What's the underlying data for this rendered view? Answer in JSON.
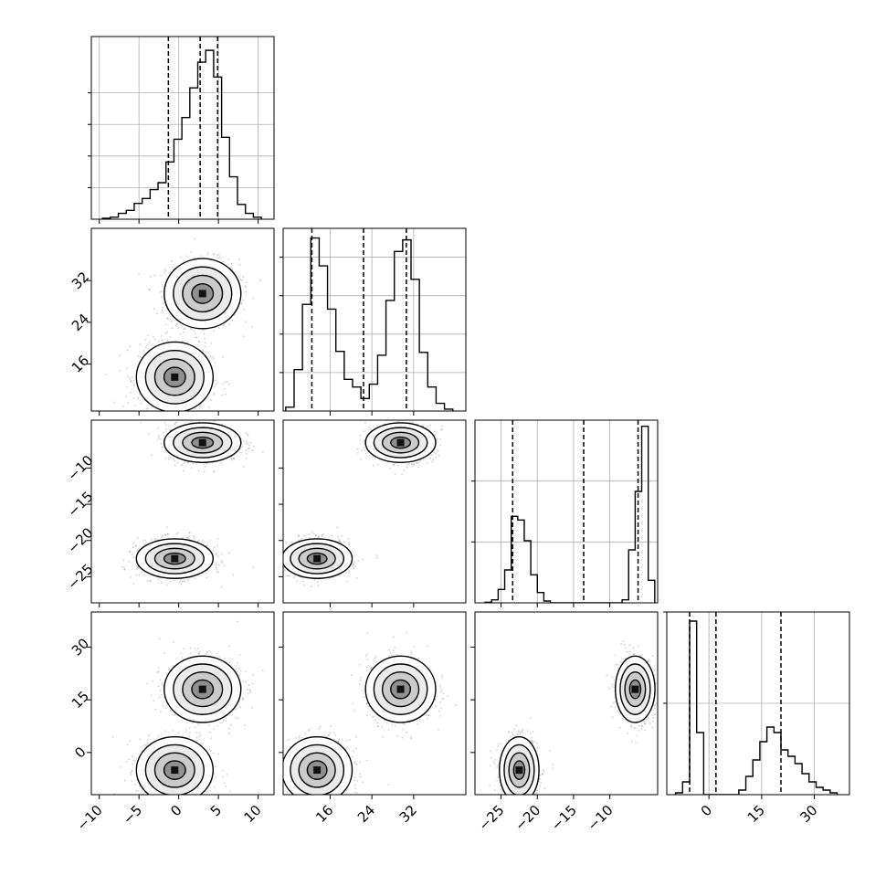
{
  "chart_data": {
    "type": "corner",
    "grid": true,
    "parameters": [
      {
        "index": 0,
        "range": [
          -11,
          12
        ],
        "ticks": [
          -10,
          -5,
          0,
          5,
          10
        ],
        "tick_labels": [
          "−10",
          "−5",
          "0",
          "5",
          "10"
        ],
        "quantiles": [
          -1.3,
          2.7,
          4.9
        ],
        "histogram": {
          "bins": [
            -9.6,
            -8.6,
            -7.6,
            -6.6,
            -5.6,
            -4.6,
            -3.6,
            -2.6,
            -1.6,
            -0.6,
            0.4,
            1.4,
            2.4,
            3.4,
            4.4,
            5.4,
            6.4,
            7.4,
            8.4,
            9.4,
            10.4
          ],
          "counts": [
            1,
            2,
            6,
            9,
            16,
            21,
            30,
            37,
            58,
            81,
            103,
            133,
            159,
            171,
            144,
            83,
            43,
            15,
            6,
            2
          ],
          "max": 185
        },
        "gridlines": [
          32,
          64,
          96,
          128
        ]
      },
      {
        "index": 1,
        "range": [
          7,
          42
        ],
        "ticks": [
          16,
          24,
          32
        ],
        "tick_labels": [
          "16",
          "24",
          "32"
        ],
        "quantiles": [
          12.5,
          22.4,
          30.6
        ],
        "histogram": {
          "bins": [
            7.5,
            9.1,
            10.7,
            12.3,
            13.9,
            15.5,
            17.1,
            18.7,
            20.3,
            21.9,
            23.5,
            25.1,
            26.7,
            28.3,
            29.9,
            31.5,
            33.1,
            34.7,
            36.3,
            37.9,
            39.5
          ],
          "counts": [
            4,
            43,
            111,
            180,
            151,
            106,
            62,
            33,
            25,
            13,
            28,
            58,
            115,
            166,
            178,
            137,
            61,
            25,
            8,
            2
          ],
          "max": 190
        },
        "gridlines": [
          40,
          80,
          120,
          160
        ]
      },
      {
        "index": 2,
        "range": [
          -28.6,
          -3.4
        ],
        "ticks": [
          -10,
          -15,
          -20,
          -25
        ],
        "tick_labels": [
          "−10",
          "−15",
          "−20",
          "−25"
        ],
        "quantiles": [
          -23.4,
          -13.6,
          -6.1
        ],
        "histogram": {
          "bins": [
            -27.2,
            -26.3,
            -25.4,
            -24.5,
            -23.6,
            -22.7,
            -21.8,
            -20.9,
            -20.0,
            -19.1,
            -18.2,
            -17.3,
            -16.4,
            -15.5,
            -14.6,
            -13.7,
            -12.8,
            -11.9,
            -11.0,
            -10.1,
            -9.2,
            -8.3,
            -7.4,
            -6.5,
            -5.6,
            -4.7,
            -3.8
          ],
          "counts": [
            1,
            5,
            22,
            54,
            142,
            136,
            102,
            46,
            17,
            3,
            0,
            0,
            0,
            0,
            0,
            0,
            0,
            0,
            0,
            0,
            0,
            5,
            87,
            183,
            290,
            37
          ],
          "max": 300
        },
        "gridlines": [
          100,
          200
        ]
      },
      {
        "index": 3,
        "range": [
          -12,
          40
        ],
        "ticks": [
          0,
          15,
          30
        ],
        "tick_labels": [
          "0",
          "15",
          "30"
        ],
        "quantiles": [
          -5.5,
          2.0,
          20.5
        ],
        "histogram": {
          "bins": [
            -9.5,
            -7.5,
            -5.5,
            -3.5,
            -1.5,
            0.5,
            2.5,
            4.5,
            6.5,
            8.5,
            10.5,
            12.5,
            14.5,
            16.5,
            18.5,
            20.5,
            22.5,
            24.5,
            26.5,
            28.5,
            30.5,
            32.5,
            34.5,
            36.5
          ],
          "counts": [
            2,
            14,
            190,
            68,
            0,
            0,
            0,
            0,
            0,
            5,
            20,
            38,
            58,
            74,
            68,
            49,
            42,
            34,
            23,
            14,
            8,
            5,
            2
          ],
          "max": 200
        },
        "gridlines": [
          100,
          200
        ]
      }
    ],
    "modes": [
      [
        3.0,
        29.5,
        -6.5,
        18.0
      ],
      [
        -0.5,
        13.5,
        -22.5,
        -5.0
      ]
    ],
    "contour_levels": 4
  }
}
